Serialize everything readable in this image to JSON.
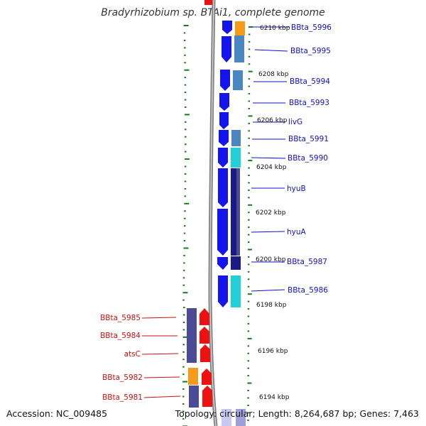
{
  "title": "Bradyrhizobium sp. BTAi1, complete genome",
  "footer": {
    "accession": "Accession: NC_009485",
    "topology": "Topology: circular; Length: 8,264,687 bp; Genes: 7,463"
  },
  "scale_labels": [
    "6210 kbp",
    "6208 kbp",
    "6206 kbp",
    "6204 kbp",
    "6202 kbp",
    "6200 kbp",
    "6198 kbp",
    "6196 kbp",
    "6194 kbp"
  ],
  "genes_right": [
    "BBta_5996",
    "BBta_5995",
    "BBta_5994",
    "BBta_5993",
    "livG",
    "BBta_5991",
    "BBta_5990",
    "hyuB",
    "hyuA",
    "BBta_5987",
    "BBta_5986"
  ],
  "genes_left": [
    "BBta_5985",
    "BBta_5984",
    "atsC",
    "BBta_5982",
    "BBta_5981"
  ],
  "colors": {
    "right_label": "#1010c8",
    "left_label": "#cc1010",
    "tick": "#1a7a1a",
    "blue_arrow": "#1414ee",
    "red_arrow": "#ee1111",
    "orange": "#f79a1a",
    "steel": "#4a86c0",
    "cyan": "#20d2d8",
    "navy": "#1a1a88",
    "slate": "#4a4a96",
    "backbone": "#808080"
  }
}
